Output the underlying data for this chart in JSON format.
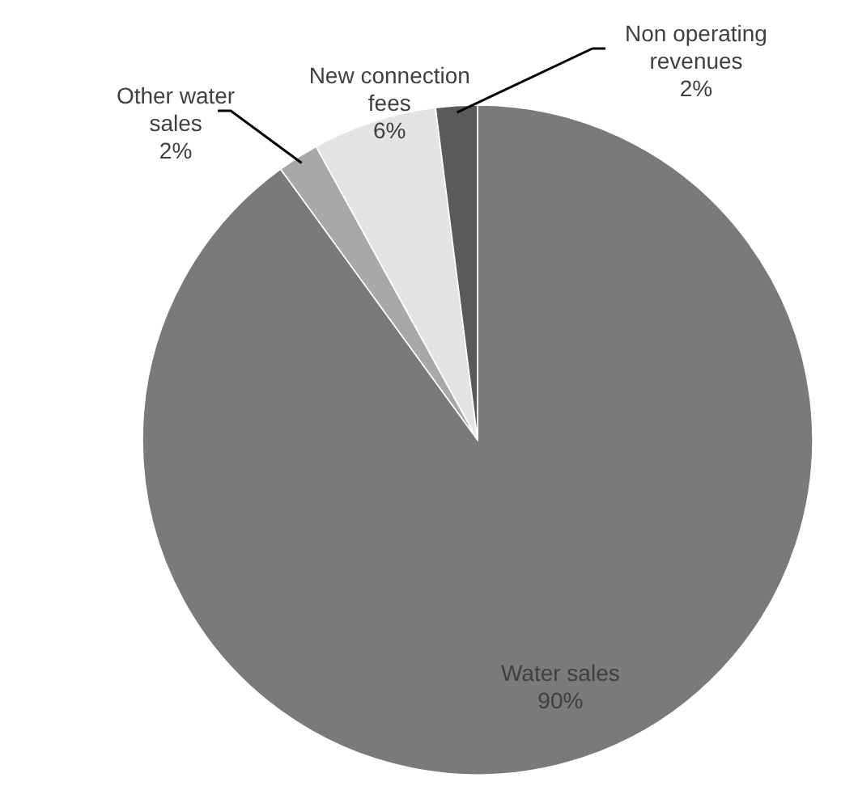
{
  "chart_data": {
    "type": "pie",
    "categories": [
      "Water sales",
      "Other water sales",
      "New connection fees",
      "Non operating revenues"
    ],
    "values": [
      90,
      2,
      6,
      2
    ],
    "value_labels": [
      "90%",
      "2%",
      "6%",
      "2%"
    ],
    "colors": [
      "#7a7a7a",
      "#a8a8a8",
      "#e4e4e4",
      "#5a5a5a"
    ]
  }
}
